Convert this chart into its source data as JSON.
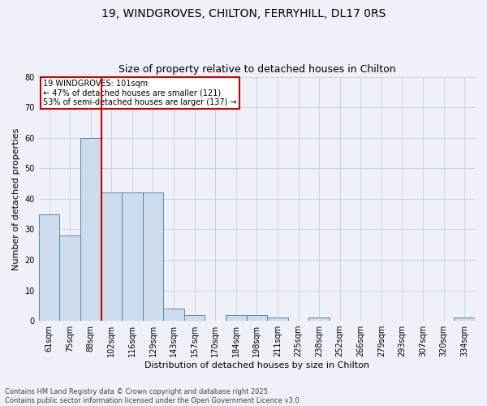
{
  "title1": "19, WINDGROVES, CHILTON, FERRYHILL, DL17 0RS",
  "title2": "Size of property relative to detached houses in Chilton",
  "xlabel": "Distribution of detached houses by size in Chilton",
  "ylabel": "Number of detached properties",
  "categories": [
    "61sqm",
    "75sqm",
    "88sqm",
    "102sqm",
    "116sqm",
    "129sqm",
    "143sqm",
    "157sqm",
    "170sqm",
    "184sqm",
    "198sqm",
    "211sqm",
    "225sqm",
    "238sqm",
    "252sqm",
    "266sqm",
    "279sqm",
    "293sqm",
    "307sqm",
    "320sqm",
    "334sqm"
  ],
  "values": [
    35,
    28,
    60,
    42,
    42,
    42,
    4,
    2,
    0,
    2,
    2,
    1,
    0,
    1,
    0,
    0,
    0,
    0,
    0,
    0,
    1
  ],
  "bar_color": "#ccdcec",
  "bar_edge_color": "#5588aa",
  "vline_x": 2.5,
  "vline_color": "#cc0000",
  "annotation_text": "19 WINDGROVES: 101sqm\n← 47% of detached houses are smaller (121)\n53% of semi-detached houses are larger (137) →",
  "annotation_box_color": "#ffffff",
  "annotation_box_edge": "#cc0000",
  "ylim": [
    0,
    80
  ],
  "yticks": [
    0,
    10,
    20,
    30,
    40,
    50,
    60,
    70,
    80
  ],
  "footer1": "Contains HM Land Registry data © Crown copyright and database right 2025.",
  "footer2": "Contains public sector information licensed under the Open Government Licence v3.0.",
  "grid_color": "#c8d0dc",
  "background_color": "#eef2f8",
  "title_fontsize": 10,
  "subtitle_fontsize": 9,
  "axis_label_fontsize": 8,
  "tick_fontsize": 7,
  "annotation_fontsize": 7,
  "footer_fontsize": 6
}
